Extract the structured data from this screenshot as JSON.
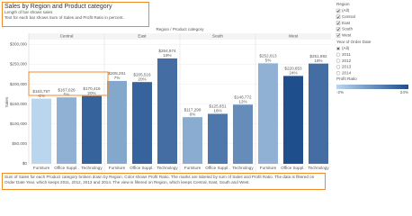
{
  "header": {
    "title": "Sales by Region and Product category",
    "subtitle": [
      "Length of bar shows sales",
      "Text for each bar shows Sum of Sales and Profit Ratio in percent."
    ]
  },
  "chart_data": {
    "type": "bar",
    "header": "Region / Product category",
    "y_label": "Sales",
    "categories": [
      "Furniture",
      "Office Suppl..",
      "Technology"
    ],
    "series": [
      {
        "name": "Central",
        "values": [
          163797,
          167026,
          170416
        ],
        "value_labels": [
          "$163,797",
          "$167,026",
          "$170,416"
        ],
        "profit_ratio": [
          -2,
          5,
          20
        ],
        "profit_ratio_labels": [
          "-2%",
          "5%",
          "20%"
        ]
      },
      {
        "name": "East",
        "values": [
          208291,
          205516,
          264974
        ],
        "value_labels": [
          "$208,291",
          "$205,516",
          "$264,974"
        ],
        "profit_ratio": [
          7,
          20,
          18
        ],
        "profit_ratio_labels": [
          "7%",
          "20%",
          "18%"
        ]
      },
      {
        "name": "South",
        "values": [
          117299,
          125651,
          148772
        ],
        "value_labels": [
          "$117,299",
          "$125,651",
          "$148,772"
        ],
        "profit_ratio": [
          6,
          16,
          12
        ],
        "profit_ratio_labels": [
          "6%",
          "16%",
          "12%"
        ]
      },
      {
        "name": "West",
        "values": [
          252613,
          220853,
          251992
        ],
        "value_labels": [
          "$252,613",
          "$220,853",
          "$251,992"
        ],
        "profit_ratio": [
          5,
          24,
          18
        ],
        "profit_ratio_labels": [
          "5%",
          "24%",
          "18%"
        ]
      }
    ],
    "ylim": [
      0,
      310000
    ],
    "yticks": [
      {
        "value": 0,
        "label": "$0"
      },
      {
        "value": 50000,
        "label": "$50,000"
      },
      {
        "value": 100000,
        "label": "$100,000"
      },
      {
        "value": 150000,
        "label": "$150,000"
      },
      {
        "value": 200000,
        "label": "$200,000"
      },
      {
        "value": 250000,
        "label": "$250,000"
      },
      {
        "value": 300000,
        "label": "$300,000"
      }
    ],
    "grid": true,
    "color_legend": {
      "title": "Profit Ratio",
      "range": [
        {
          "value": -2,
          "label": "-2%"
        },
        {
          "value": 24,
          "label": "24%"
        }
      ],
      "colors": [
        "#b9d6ee",
        "#1f4e8d"
      ]
    }
  },
  "filters": {
    "region": {
      "title": "Region",
      "options": [
        "(All)",
        "Central",
        "East",
        "South",
        "West"
      ]
    },
    "year": {
      "title": "Year of Order Date",
      "options": [
        "(All)",
        "2011",
        "2012",
        "2013",
        "2014"
      ]
    }
  },
  "footer": "Sum of Sales for each Product category broken down by Region.  Color shows Profit Ratio.  The marks are labeled by sum of Sales and Profit Ratio. The data is filtered on Order Date Year, which keeps 2011, 2012, 2013 and 2014. The view is filtered on Region, which keeps Central, East, South and West."
}
